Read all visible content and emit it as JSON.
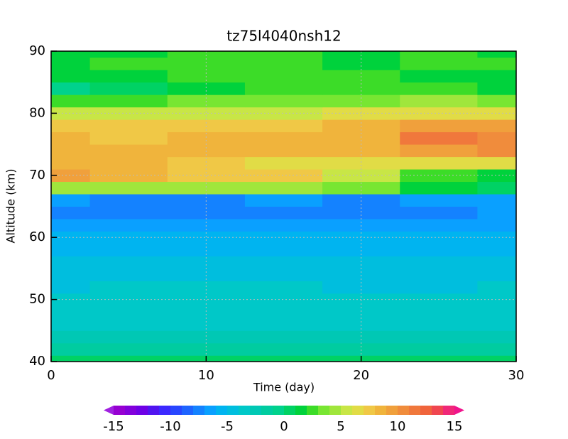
{
  "chart_data": {
    "type": "contour",
    "title": "tz75l4040nsh12",
    "x_label": "Time (day)",
    "y_label": "Altitude (km)",
    "x": [
      0,
      5,
      10,
      15,
      20,
      25,
      30
    ],
    "y": [
      40,
      42,
      44,
      46,
      48,
      50,
      52,
      54,
      56,
      58,
      60,
      62,
      64,
      66,
      68,
      70,
      72,
      74,
      76,
      78,
      80,
      82,
      84,
      86,
      88,
      90
    ],
    "z": [
      [
        0,
        0,
        0,
        0,
        0,
        0,
        0
      ],
      [
        -2,
        -2,
        -2,
        -2,
        -2,
        -2,
        -2
      ],
      [
        -3,
        -3,
        -3,
        -3,
        -3,
        -3,
        -3
      ],
      [
        -3.5,
        -4,
        -4,
        -3.5,
        -4,
        -4,
        -3.5
      ],
      [
        -4,
        -4,
        -4,
        -4,
        -4,
        -4,
        -4
      ],
      [
        -4,
        -4,
        -4,
        -4,
        -4,
        -4,
        -4
      ],
      [
        -4.5,
        -4,
        -4,
        -4,
        -4.5,
        -4.5,
        -4
      ],
      [
        -4.5,
        -4.5,
        -4.5,
        -4.5,
        -4.5,
        -4.5,
        -4.5
      ],
      [
        -4.5,
        -5,
        -5,
        -4.5,
        -5,
        -5,
        -5
      ],
      [
        -5.5,
        -5.5,
        -5.5,
        -5.5,
        -5.5,
        -5.5,
        -5.5
      ],
      [
        -6,
        -6,
        -6,
        -6,
        -6,
        -6,
        -6
      ],
      [
        -7,
        -6.5,
        -6.5,
        -6.5,
        -6.5,
        -7,
        -7
      ],
      [
        -8,
        -8,
        -8,
        -7.5,
        -8,
        -7.5,
        -7
      ],
      [
        -7,
        -7.5,
        -7.5,
        -7,
        -7.5,
        -7,
        -7
      ],
      [
        4,
        4,
        4,
        4,
        3,
        1,
        0
      ],
      [
        9,
        8,
        7,
        7,
        5,
        2,
        1
      ],
      [
        8,
        8,
        7,
        6,
        6,
        6,
        6
      ],
      [
        8,
        8,
        8,
        8,
        8,
        9,
        10
      ],
      [
        8,
        7,
        8,
        8,
        8,
        11,
        10
      ],
      [
        7,
        7,
        7,
        7,
        8,
        9,
        9
      ],
      [
        5,
        5,
        5,
        5,
        6,
        6,
        6
      ],
      [
        2,
        2,
        3,
        3,
        3,
        4,
        3
      ],
      [
        -1,
        0,
        1,
        2,
        2,
        2,
        1
      ],
      [
        1,
        1,
        2,
        2,
        2,
        1,
        1
      ],
      [
        1,
        2,
        2,
        2,
        1,
        2,
        2
      ],
      [
        1,
        1,
        2,
        2,
        1,
        2,
        1
      ]
    ],
    "xlim": [
      0,
      30
    ],
    "ylim": [
      40,
      90
    ],
    "xticks": [
      0,
      10,
      20,
      30
    ],
    "yticks": [
      40,
      50,
      60,
      70,
      80,
      90
    ],
    "grid": true,
    "colorbar": {
      "lim": [
        -15,
        15
      ],
      "ticks": [
        -15,
        -10,
        -5,
        0,
        5,
        10,
        15
      ],
      "under_color": "#a020e0",
      "over_color": "#f0148c",
      "colors": [
        "#9600d2",
        "#8200dc",
        "#6e00e6",
        "#5014f0",
        "#3c28ff",
        "#2846ff",
        "#1e64ff",
        "#1482ff",
        "#0aa0ff",
        "#00b4f0",
        "#00bede",
        "#00c8c8",
        "#00c8b4",
        "#00cca0",
        "#00d28c",
        "#00d264",
        "#00d23c",
        "#3cdc28",
        "#78e632",
        "#a0e63c",
        "#c8e646",
        "#e1dc46",
        "#f0c846",
        "#f0b43c",
        "#f0a03c",
        "#f08c3c",
        "#f0783c",
        "#f0643c",
        "#f04650",
        "#f02878"
      ]
    }
  }
}
